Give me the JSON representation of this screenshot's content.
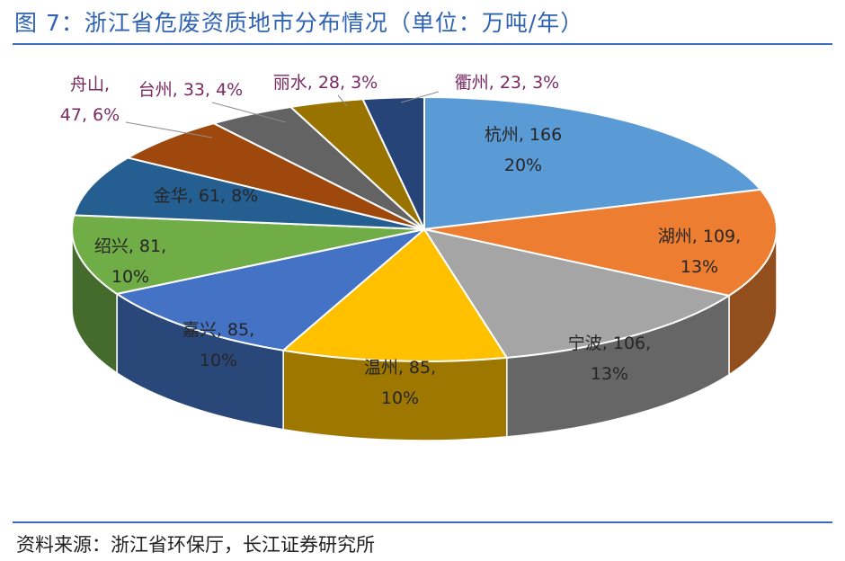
{
  "header": {
    "title": "图 7：浙江省危废资质地市分布情况（单位：万吨/年）"
  },
  "footer": {
    "source": "资料来源：浙江省环保厅，长江证券研究所"
  },
  "chart_data": {
    "type": "pie",
    "unit": "万吨/年",
    "categories": [
      "杭州",
      "湖州",
      "宁波",
      "温州",
      "嘉兴",
      "绍兴",
      "金华",
      "舟山",
      "台州",
      "丽水",
      "衢州"
    ],
    "values": [
      166,
      109,
      106,
      85,
      85,
      81,
      61,
      47,
      33,
      28,
      23
    ],
    "percents": [
      "20%",
      "13%",
      "13%",
      "10%",
      "10%",
      "10%",
      "8%",
      "6%",
      "4%",
      "3%",
      "3%"
    ],
    "slices": [
      {
        "name": "杭州",
        "value": 166,
        "percent": "20%",
        "label_line1": "杭州, 166",
        "label_line2": "20%",
        "color": "#5b9bd5"
      },
      {
        "name": "湖州",
        "value": 109,
        "percent": "13%",
        "label_line1": "湖州, 109,",
        "label_line2": "13%",
        "color": "#ed7d31"
      },
      {
        "name": "宁波",
        "value": 106,
        "percent": "13%",
        "label_line1": "宁波, 106,",
        "label_line2": "13%",
        "color": "#a5a5a5"
      },
      {
        "name": "温州",
        "value": 85,
        "percent": "10%",
        "label_line1": "温州, 85,",
        "label_line2": "10%",
        "color": "#ffc000"
      },
      {
        "name": "嘉兴",
        "value": 85,
        "percent": "10%",
        "label_line1": "嘉兴, 85,",
        "label_line2": "10%",
        "color": "#4472c4"
      },
      {
        "name": "绍兴",
        "value": 81,
        "percent": "10%",
        "label_line1": "绍兴, 81,",
        "label_line2": "10%",
        "color": "#70ad47"
      },
      {
        "name": "金华",
        "value": 61,
        "percent": "8%",
        "label_line1": "金华, 61, 8%",
        "label_line2": "",
        "color": "#255e91"
      },
      {
        "name": "舟山",
        "value": 47,
        "percent": "6%",
        "label_line1": "舟山,",
        "label_line2": "47, 6%",
        "color": "#9e480e"
      },
      {
        "name": "台州",
        "value": 33,
        "percent": "4%",
        "label_line1": "台州, 33, 4%",
        "label_line2": "",
        "color": "#636363"
      },
      {
        "name": "丽水",
        "value": 28,
        "percent": "3%",
        "label_line1": "丽水, 28, 3%",
        "label_line2": "",
        "color": "#997300"
      },
      {
        "name": "衢州",
        "value": 23,
        "percent": "3%",
        "label_line1": "衢州, 23, 3%",
        "label_line2": "",
        "color": "#264478"
      }
    ]
  }
}
